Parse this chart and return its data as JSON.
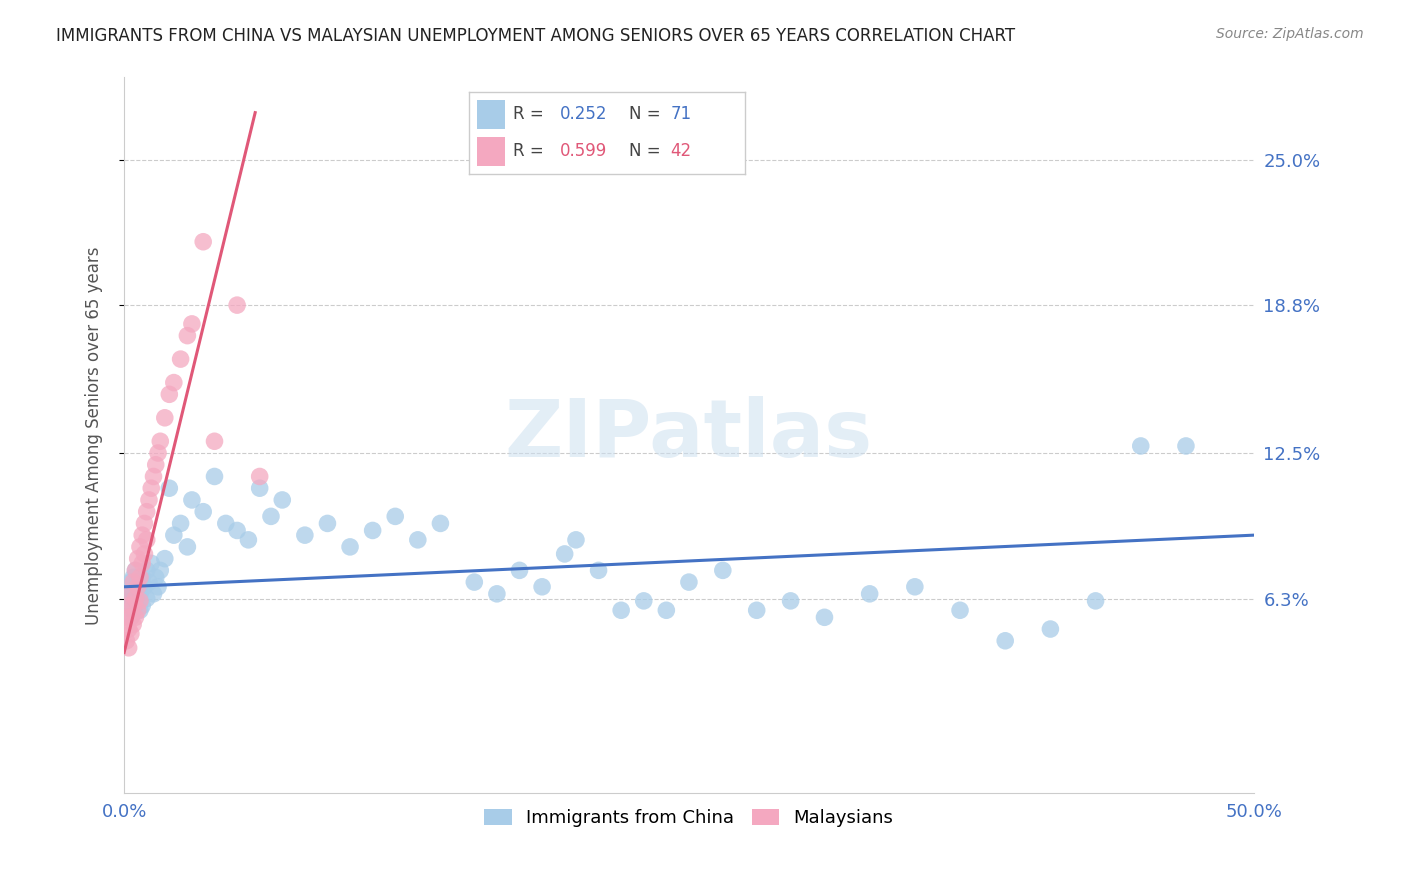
{
  "title": "IMMIGRANTS FROM CHINA VS MALAYSIAN UNEMPLOYMENT AMONG SENIORS OVER 65 YEARS CORRELATION CHART",
  "source": "Source: ZipAtlas.com",
  "ylabel": "Unemployment Among Seniors over 65 years",
  "ytick_labels": [
    "6.3%",
    "12.5%",
    "18.8%",
    "25.0%"
  ],
  "ytick_values": [
    0.063,
    0.125,
    0.188,
    0.25
  ],
  "xlim": [
    0.0,
    0.5
  ],
  "ylim": [
    -0.02,
    0.285
  ],
  "color_blue": "#a8cce8",
  "color_pink": "#f4a8c0",
  "color_blue_line": "#4472c4",
  "color_pink_line": "#e05878",
  "color_blue_text": "#4472c4",
  "color_pink_text": "#e05878",
  "legend_label1": "Immigrants from China",
  "legend_label2": "Malaysians",
  "china_x": [
    0.001,
    0.002,
    0.002,
    0.003,
    0.003,
    0.003,
    0.004,
    0.004,
    0.004,
    0.005,
    0.005,
    0.005,
    0.006,
    0.006,
    0.007,
    0.007,
    0.008,
    0.008,
    0.009,
    0.01,
    0.01,
    0.011,
    0.012,
    0.013,
    0.014,
    0.015,
    0.016,
    0.018,
    0.02,
    0.022,
    0.025,
    0.028,
    0.03,
    0.035,
    0.04,
    0.045,
    0.05,
    0.055,
    0.06,
    0.065,
    0.07,
    0.08,
    0.09,
    0.1,
    0.11,
    0.12,
    0.13,
    0.14,
    0.155,
    0.165,
    0.175,
    0.185,
    0.195,
    0.2,
    0.21,
    0.22,
    0.23,
    0.24,
    0.25,
    0.265,
    0.28,
    0.295,
    0.31,
    0.33,
    0.35,
    0.37,
    0.39,
    0.41,
    0.43,
    0.45,
    0.47
  ],
  "china_y": [
    0.063,
    0.06,
    0.068,
    0.055,
    0.063,
    0.07,
    0.058,
    0.065,
    0.072,
    0.06,
    0.068,
    0.075,
    0.062,
    0.07,
    0.058,
    0.065,
    0.072,
    0.06,
    0.068,
    0.075,
    0.063,
    0.07,
    0.078,
    0.065,
    0.072,
    0.068,
    0.075,
    0.08,
    0.11,
    0.09,
    0.095,
    0.085,
    0.105,
    0.1,
    0.115,
    0.095,
    0.092,
    0.088,
    0.11,
    0.098,
    0.105,
    0.09,
    0.095,
    0.085,
    0.092,
    0.098,
    0.088,
    0.095,
    0.07,
    0.065,
    0.075,
    0.068,
    0.082,
    0.088,
    0.075,
    0.058,
    0.062,
    0.058,
    0.07,
    0.075,
    0.058,
    0.062,
    0.055,
    0.065,
    0.068,
    0.058,
    0.045,
    0.05,
    0.062,
    0.128,
    0.128
  ],
  "malay_x": [
    0.001,
    0.001,
    0.002,
    0.002,
    0.002,
    0.003,
    0.003,
    0.003,
    0.004,
    0.004,
    0.004,
    0.005,
    0.005,
    0.005,
    0.006,
    0.006,
    0.006,
    0.007,
    0.007,
    0.007,
    0.008,
    0.008,
    0.009,
    0.009,
    0.01,
    0.01,
    0.011,
    0.012,
    0.013,
    0.014,
    0.015,
    0.016,
    0.018,
    0.02,
    0.022,
    0.025,
    0.028,
    0.03,
    0.035,
    0.04,
    0.05,
    0.06
  ],
  "malay_y": [
    0.055,
    0.045,
    0.06,
    0.05,
    0.042,
    0.065,
    0.055,
    0.048,
    0.07,
    0.06,
    0.052,
    0.075,
    0.063,
    0.055,
    0.08,
    0.068,
    0.058,
    0.085,
    0.072,
    0.062,
    0.09,
    0.078,
    0.095,
    0.082,
    0.1,
    0.088,
    0.105,
    0.11,
    0.115,
    0.12,
    0.125,
    0.13,
    0.14,
    0.15,
    0.155,
    0.165,
    0.175,
    0.18,
    0.215,
    0.13,
    0.188,
    0.115
  ],
  "blue_line_x": [
    0.0,
    0.5
  ],
  "blue_line_y": [
    0.068,
    0.09
  ],
  "pink_line_x": [
    0.0,
    0.058
  ],
  "pink_line_y": [
    0.04,
    0.27
  ]
}
